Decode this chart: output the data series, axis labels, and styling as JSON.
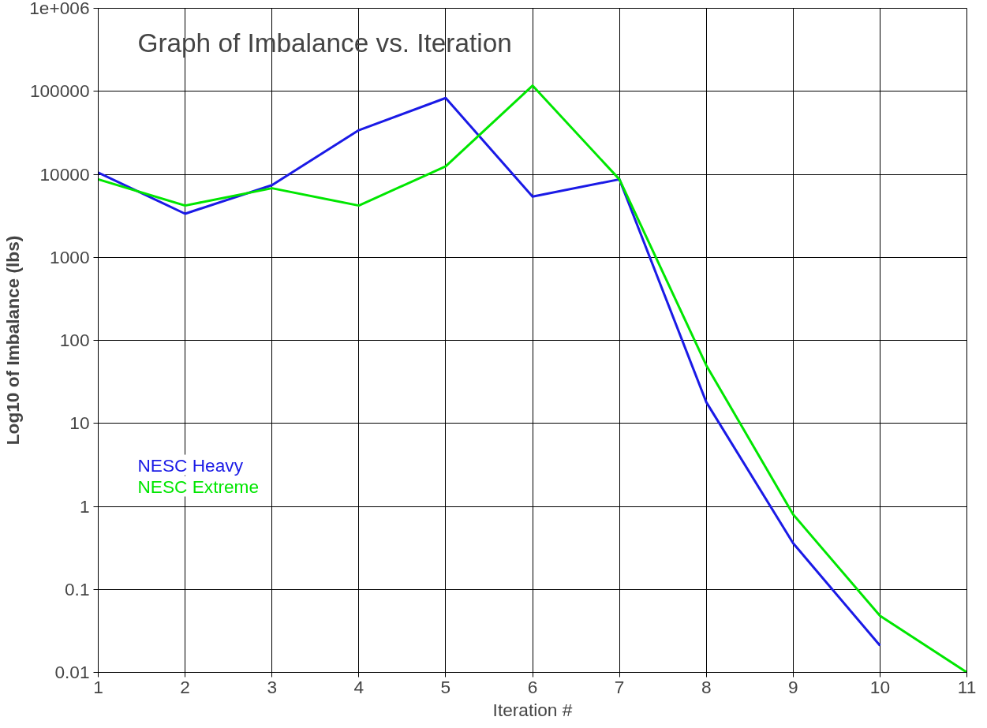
{
  "chart_data": {
    "type": "line",
    "title": "Graph of Imbalance vs. Iteration",
    "xlabel": "Iteration #",
    "ylabel": "Log10 of Imbalance (lbs)",
    "x": [
      1,
      2,
      3,
      4,
      5,
      6,
      7,
      8,
      9,
      10,
      11
    ],
    "series": [
      {
        "name": "NESC Heavy",
        "color": "#1a1ae6",
        "values": [
          10500,
          3350,
          7400,
          34000,
          83000,
          5400,
          8700,
          18,
          0.36,
          0.021,
          null
        ]
      },
      {
        "name": "NESC Extreme",
        "color": "#00e600",
        "values": [
          8700,
          4200,
          6800,
          4200,
          12500,
          117000,
          8700,
          50,
          0.8,
          0.048,
          0.01
        ]
      }
    ],
    "log": true,
    "xlim": [
      1,
      11
    ],
    "xticks": [
      1,
      2,
      3,
      4,
      5,
      6,
      7,
      8,
      9,
      10,
      11
    ],
    "ylim": [
      0.01,
      1000000
    ],
    "yticks": [
      0.01,
      0.1,
      1,
      10,
      100,
      1000,
      10000,
      100000,
      {
        "value": 1000000,
        "label": "1e+006"
      }
    ],
    "grid": true,
    "legend": "left",
    "marker": "none",
    "line_style": "solid"
  }
}
